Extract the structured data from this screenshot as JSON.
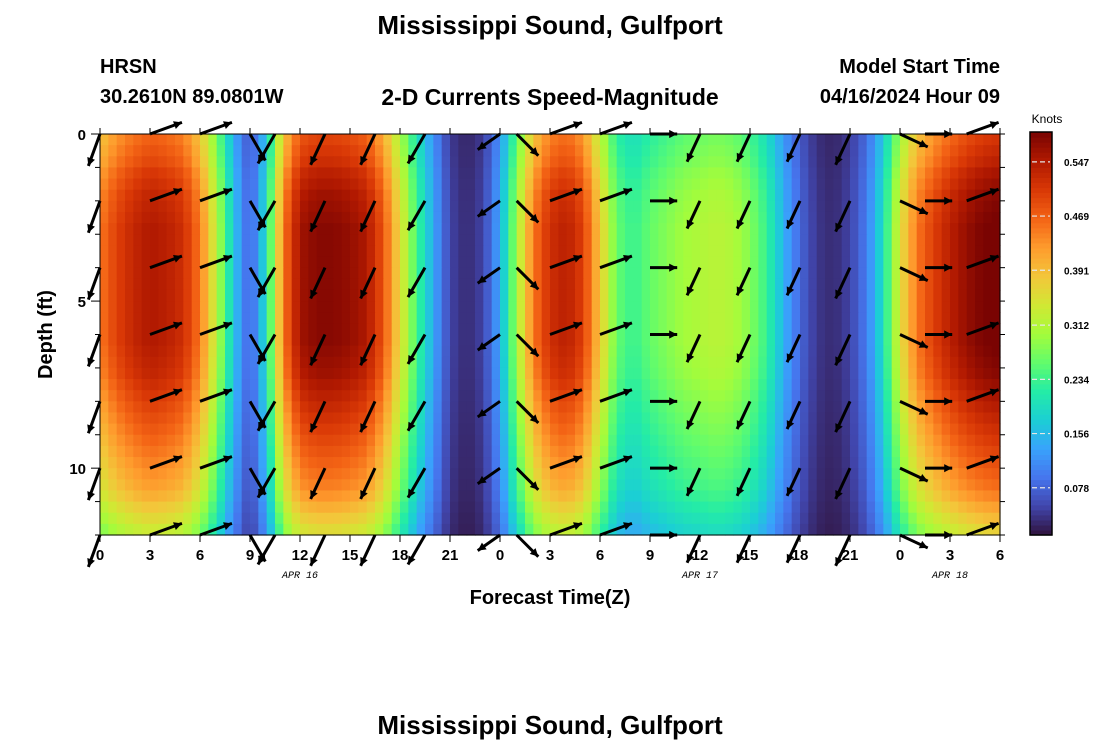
{
  "title": "Mississippi Sound, Gulfport",
  "footer_title": "Mississippi Sound, Gulfport",
  "station": "HRSN",
  "coordinates": "30.2610N  89.0801W",
  "subtitle": "2-D Currents Speed-Magnitude",
  "model_start_label": "Model Start Time",
  "model_start_value": "04/16/2024 Hour 09",
  "chart_data": {
    "type": "heatmap",
    "title": "2-D Currents Speed-Magnitude",
    "xlabel": "Forecast Time(Z)",
    "ylabel": "Depth (ft)",
    "x_range_hours": [
      0,
      54
    ],
    "y_range_ft": [
      0,
      12
    ],
    "x_tick_labels": [
      "0",
      "3",
      "6",
      "9",
      "12",
      "15",
      "18",
      "21",
      "0",
      "3",
      "6",
      "9",
      "12",
      "15",
      "18",
      "21",
      "0",
      "3",
      "6"
    ],
    "y_tick_values": [
      0,
      5,
      10
    ],
    "y_tick_labels": [
      "0",
      "5",
      "10"
    ],
    "date_labels": [
      {
        "text": "APR 16",
        "hour": 12
      },
      {
        "text": "APR 17",
        "hour": 36
      },
      {
        "text": "APR 18",
        "hour": 51
      }
    ],
    "colorbar": {
      "title": "Knots",
      "ticks": [
        0.078,
        0.156,
        0.234,
        0.312,
        0.391,
        0.469,
        0.547
      ],
      "tick_labels": [
        "0.078",
        "0.156",
        "0.234",
        "0.312",
        "0.391",
        "0.469",
        "0.547"
      ],
      "range": [
        0.01,
        0.59
      ],
      "colors": [
        "#30123b",
        "#4145ab",
        "#4675ed",
        "#39a2fc",
        "#1bcfd4",
        "#24eca6",
        "#61fc6c",
        "#a4fc3b",
        "#d1e834",
        "#f3c63a",
        "#fe9b2d",
        "#f36315",
        "#d93806",
        "#b11901",
        "#7a0402"
      ]
    },
    "speed_knots_by_hour": [
      0.45,
      0.5,
      0.53,
      0.55,
      0.54,
      0.52,
      0.45,
      0.32,
      0.17,
      0.07,
      0.2,
      0.45,
      0.56,
      0.58,
      0.58,
      0.57,
      0.55,
      0.48,
      0.36,
      0.24,
      0.14,
      0.05,
      0.03,
      0.05,
      0.14,
      0.3,
      0.45,
      0.52,
      0.54,
      0.5,
      0.38,
      0.26,
      0.23,
      0.26,
      0.28,
      0.3,
      0.31,
      0.32,
      0.31,
      0.28,
      0.23,
      0.15,
      0.08,
      0.04,
      0.03,
      0.05,
      0.1,
      0.2,
      0.35,
      0.45,
      0.5,
      0.54,
      0.57,
      0.59,
      0.6
    ],
    "depth_profile_factor": [
      0.86,
      0.88,
      0.9,
      0.93,
      0.95,
      0.97,
      0.98,
      0.99,
      1,
      1,
      1,
      1,
      1,
      1,
      1,
      1,
      1,
      1,
      1,
      0.99,
      0.98,
      0.97,
      0.95,
      0.93,
      0.91,
      0.89,
      0.87,
      0.85,
      0.83,
      0.81,
      0.79,
      0.77,
      0.74,
      0.7,
      0.66,
      0.62
    ],
    "vector_depths_ft": [
      0,
      2,
      4,
      6,
      8,
      10,
      12
    ],
    "vector_hours": [
      0,
      3,
      6,
      9,
      10.5,
      13.5,
      16.5,
      19.5,
      24,
      25,
      27,
      30,
      33,
      36,
      39,
      42,
      45,
      48,
      49.5,
      52
    ],
    "vector_directions_deg": [
      200,
      70,
      70,
      150,
      210,
      205,
      205,
      210,
      235,
      135,
      70,
      70,
      90,
      205,
      205,
      205,
      205,
      115,
      90,
      70
    ],
    "vector_speed_scale": [
      1,
      1,
      1,
      0.9,
      1,
      1,
      1,
      1,
      0.8,
      0.9,
      1,
      1,
      0.8,
      0.9,
      0.9,
      0.9,
      1,
      0.9,
      0.8,
      1
    ]
  }
}
